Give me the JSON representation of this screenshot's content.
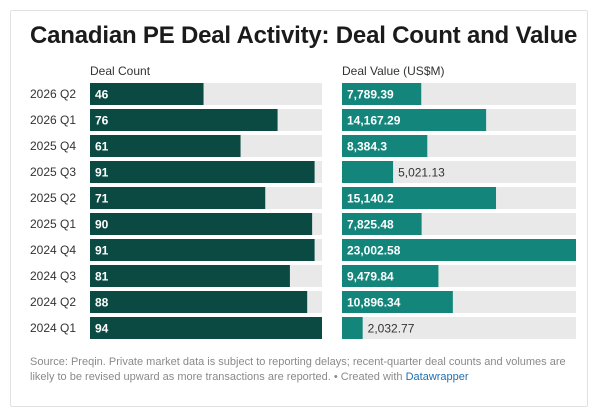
{
  "title": "Canadian PE Deal Activity: Deal Count and Value",
  "colors": {
    "count_bar": "#0b4a42",
    "value_bar": "#13857a",
    "track": "#e9e9e9",
    "label_on_bar": "#ffffff",
    "label_off_bar": "#333333"
  },
  "chart_data": [
    {
      "type": "bar",
      "orientation": "horizontal",
      "xlabel": "Deal Count",
      "ylabel": "",
      "xlim": [
        0,
        94
      ],
      "categories": [
        "2026 Q2",
        "2026 Q1",
        "2025 Q4",
        "2025 Q3",
        "2025 Q2",
        "2025 Q1",
        "2024 Q4",
        "2024 Q3",
        "2024 Q2",
        "2024 Q1"
      ],
      "values": [
        46,
        76,
        61,
        91,
        71,
        90,
        91,
        81,
        88,
        94
      ],
      "labels": [
        "46",
        "76",
        "61",
        "91",
        "71",
        "90",
        "91",
        "81",
        "88",
        "94"
      ],
      "grid": false,
      "legend": "none"
    },
    {
      "type": "bar",
      "orientation": "horizontal",
      "xlabel": "Deal Value (US$M)",
      "ylabel": "",
      "xlim": [
        0,
        23002.58
      ],
      "categories": [
        "2026 Q2",
        "2026 Q1",
        "2025 Q4",
        "2025 Q3",
        "2025 Q2",
        "2025 Q1",
        "2024 Q4",
        "2024 Q3",
        "2024 Q2",
        "2024 Q1"
      ],
      "values": [
        7789.39,
        14167.29,
        8384.3,
        5021.13,
        15140.2,
        7825.48,
        23002.58,
        9479.84,
        10896.34,
        2032.77
      ],
      "labels": [
        "7,789.39",
        "14,167.29",
        "8,384.3",
        "5,021.13",
        "15,140.2",
        "7,825.48",
        "23,002.58",
        "9,479.84",
        "10,896.34",
        "2,032.77"
      ],
      "grid": false,
      "legend": "none"
    }
  ],
  "footer": {
    "text": "Source: Preqin. Private market data is subject to reporting delays; recent-quarter deal counts and volumes are likely to be revised upward as more transactions are reported. • Created with ",
    "brand": "Datawrapper"
  }
}
